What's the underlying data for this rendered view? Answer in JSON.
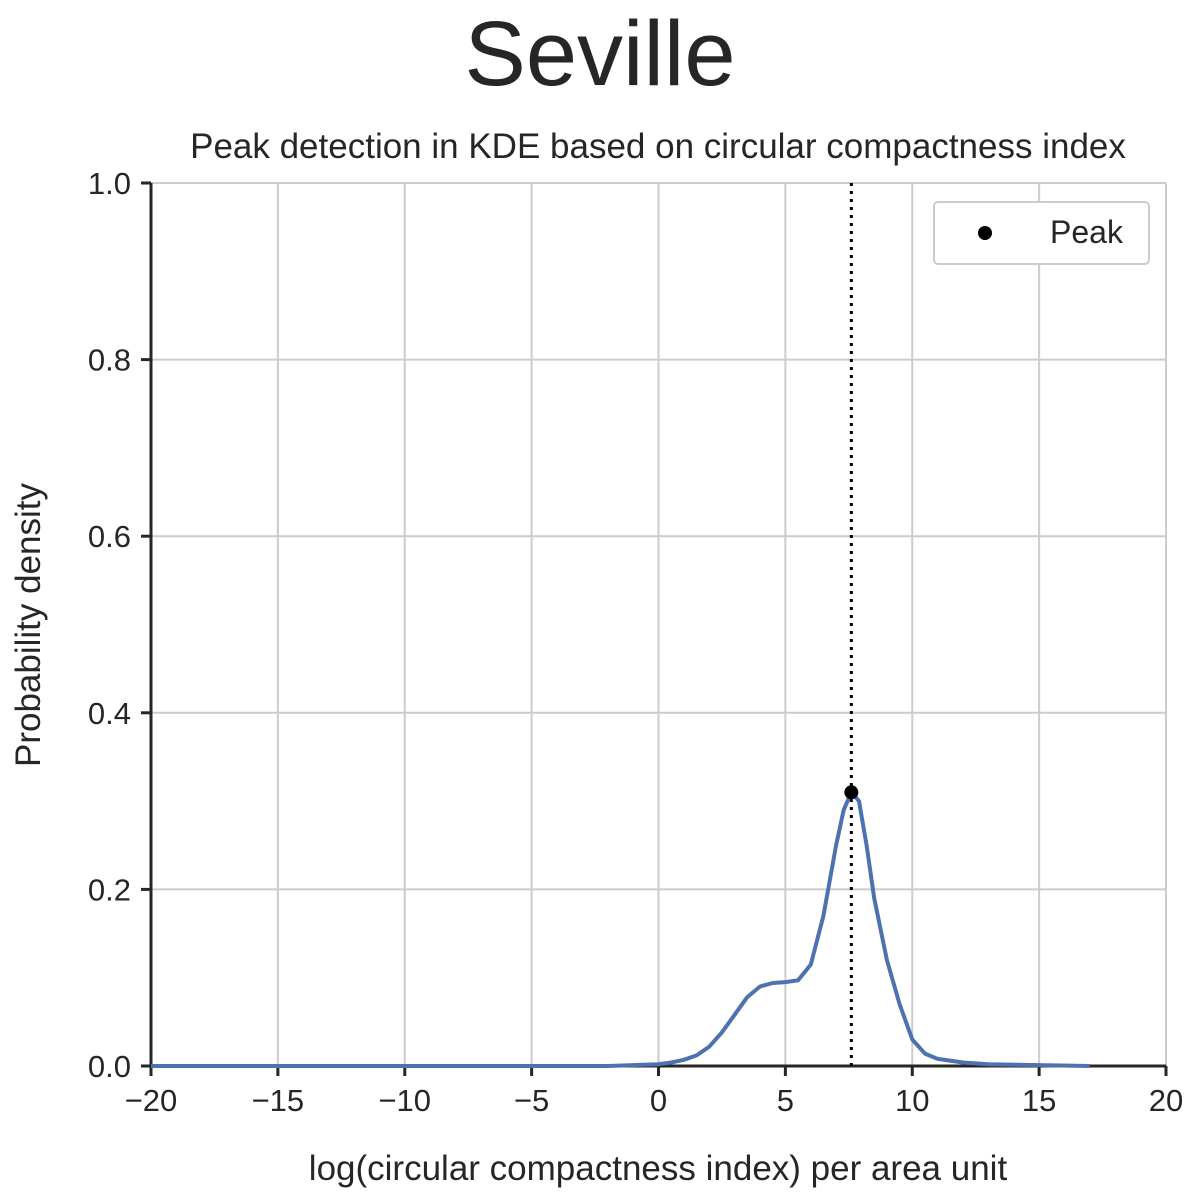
{
  "figure": {
    "suptitle": "Seville"
  },
  "chart_data": {
    "type": "line",
    "title": "Peak detection in KDE based on circular compactness index",
    "xlabel": "log(circular compactness index) per area unit",
    "ylabel": "Probability density",
    "xlim": [
      -20,
      20
    ],
    "ylim": [
      0,
      1.0
    ],
    "xticks": [
      -20,
      -15,
      -10,
      -5,
      0,
      5,
      10,
      15,
      20
    ],
    "xtick_labels": [
      "−20",
      "−15",
      "−10",
      "−5",
      "0",
      "5",
      "10",
      "15",
      "20"
    ],
    "yticks": [
      0.0,
      0.2,
      0.4,
      0.6,
      0.8,
      1.0
    ],
    "ytick_labels": [
      "0.0",
      "0.2",
      "0.4",
      "0.6",
      "0.8",
      "1.0"
    ],
    "grid": true,
    "legend_position": "top-right",
    "series": [
      {
        "color": "#4c72b0",
        "x": [
          -20,
          -15,
          -10,
          -5,
          -2,
          -1,
          0,
          0.5,
          1,
          1.5,
          2,
          2.5,
          3,
          3.5,
          4,
          4.5,
          5,
          5.5,
          6,
          6.5,
          7,
          7.3,
          7.6,
          7.9,
          8.2,
          8.5,
          9,
          9.5,
          10,
          10.5,
          11,
          12,
          13,
          15,
          17
        ],
        "y": [
          0,
          0,
          0,
          0,
          0,
          0.001,
          0.002,
          0.004,
          0.007,
          0.012,
          0.022,
          0.038,
          0.058,
          0.078,
          0.09,
          0.094,
          0.095,
          0.097,
          0.115,
          0.17,
          0.25,
          0.29,
          0.31,
          0.3,
          0.25,
          0.19,
          0.12,
          0.07,
          0.03,
          0.014,
          0.008,
          0.004,
          0.002,
          0.001,
          0
        ]
      }
    ],
    "peak": {
      "label": "Peak",
      "x": 7.6,
      "y": 0.31,
      "color": "#000000"
    }
  }
}
